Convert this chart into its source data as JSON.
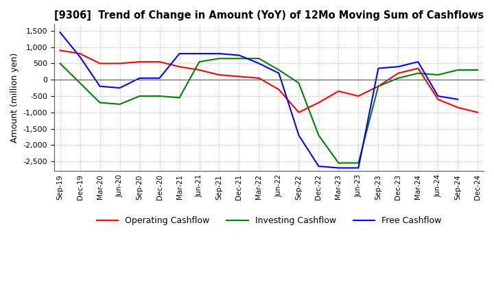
{
  "title": "[9306]  Trend of Change in Amount (YoY) of 12Mo Moving Sum of Cashflows",
  "ylabel": "Amount (million yen)",
  "ylim": [
    -2800,
    1700
  ],
  "yticks": [
    -2500,
    -2000,
    -1500,
    -1000,
    -500,
    0,
    500,
    1000,
    1500
  ],
  "x_labels": [
    "Sep-19",
    "Dec-19",
    "Mar-20",
    "Jun-20",
    "Sep-20",
    "Dec-20",
    "Mar-21",
    "Jun-21",
    "Sep-21",
    "Dec-21",
    "Mar-22",
    "Jun-22",
    "Sep-22",
    "Dec-22",
    "Mar-23",
    "Jun-23",
    "Sep-23",
    "Dec-23",
    "Mar-24",
    "Jun-24",
    "Sep-24",
    "Dec-24"
  ],
  "operating": [
    900,
    800,
    500,
    500,
    550,
    550,
    400,
    300,
    150,
    100,
    50,
    -300,
    -1000,
    -700,
    -350,
    -500,
    -200,
    200,
    350,
    -600,
    -850,
    -1000
  ],
  "investing": [
    500,
    -100,
    -700,
    -750,
    -500,
    -500,
    -550,
    550,
    650,
    650,
    650,
    300,
    -100,
    -1700,
    -2550,
    -2550,
    -200,
    50,
    200,
    150,
    300,
    300
  ],
  "free": [
    1450,
    700,
    -200,
    -250,
    50,
    50,
    800,
    800,
    800,
    750,
    500,
    200,
    -1700,
    -2650,
    -2700,
    -2700,
    350,
    400,
    550,
    -500,
    -600,
    null
  ],
  "operating_color": "#ff0000",
  "investing_color": "#008000",
  "free_color": "#0000ff",
  "background_color": "#ffffff",
  "grid_color": "#b0b0b0"
}
